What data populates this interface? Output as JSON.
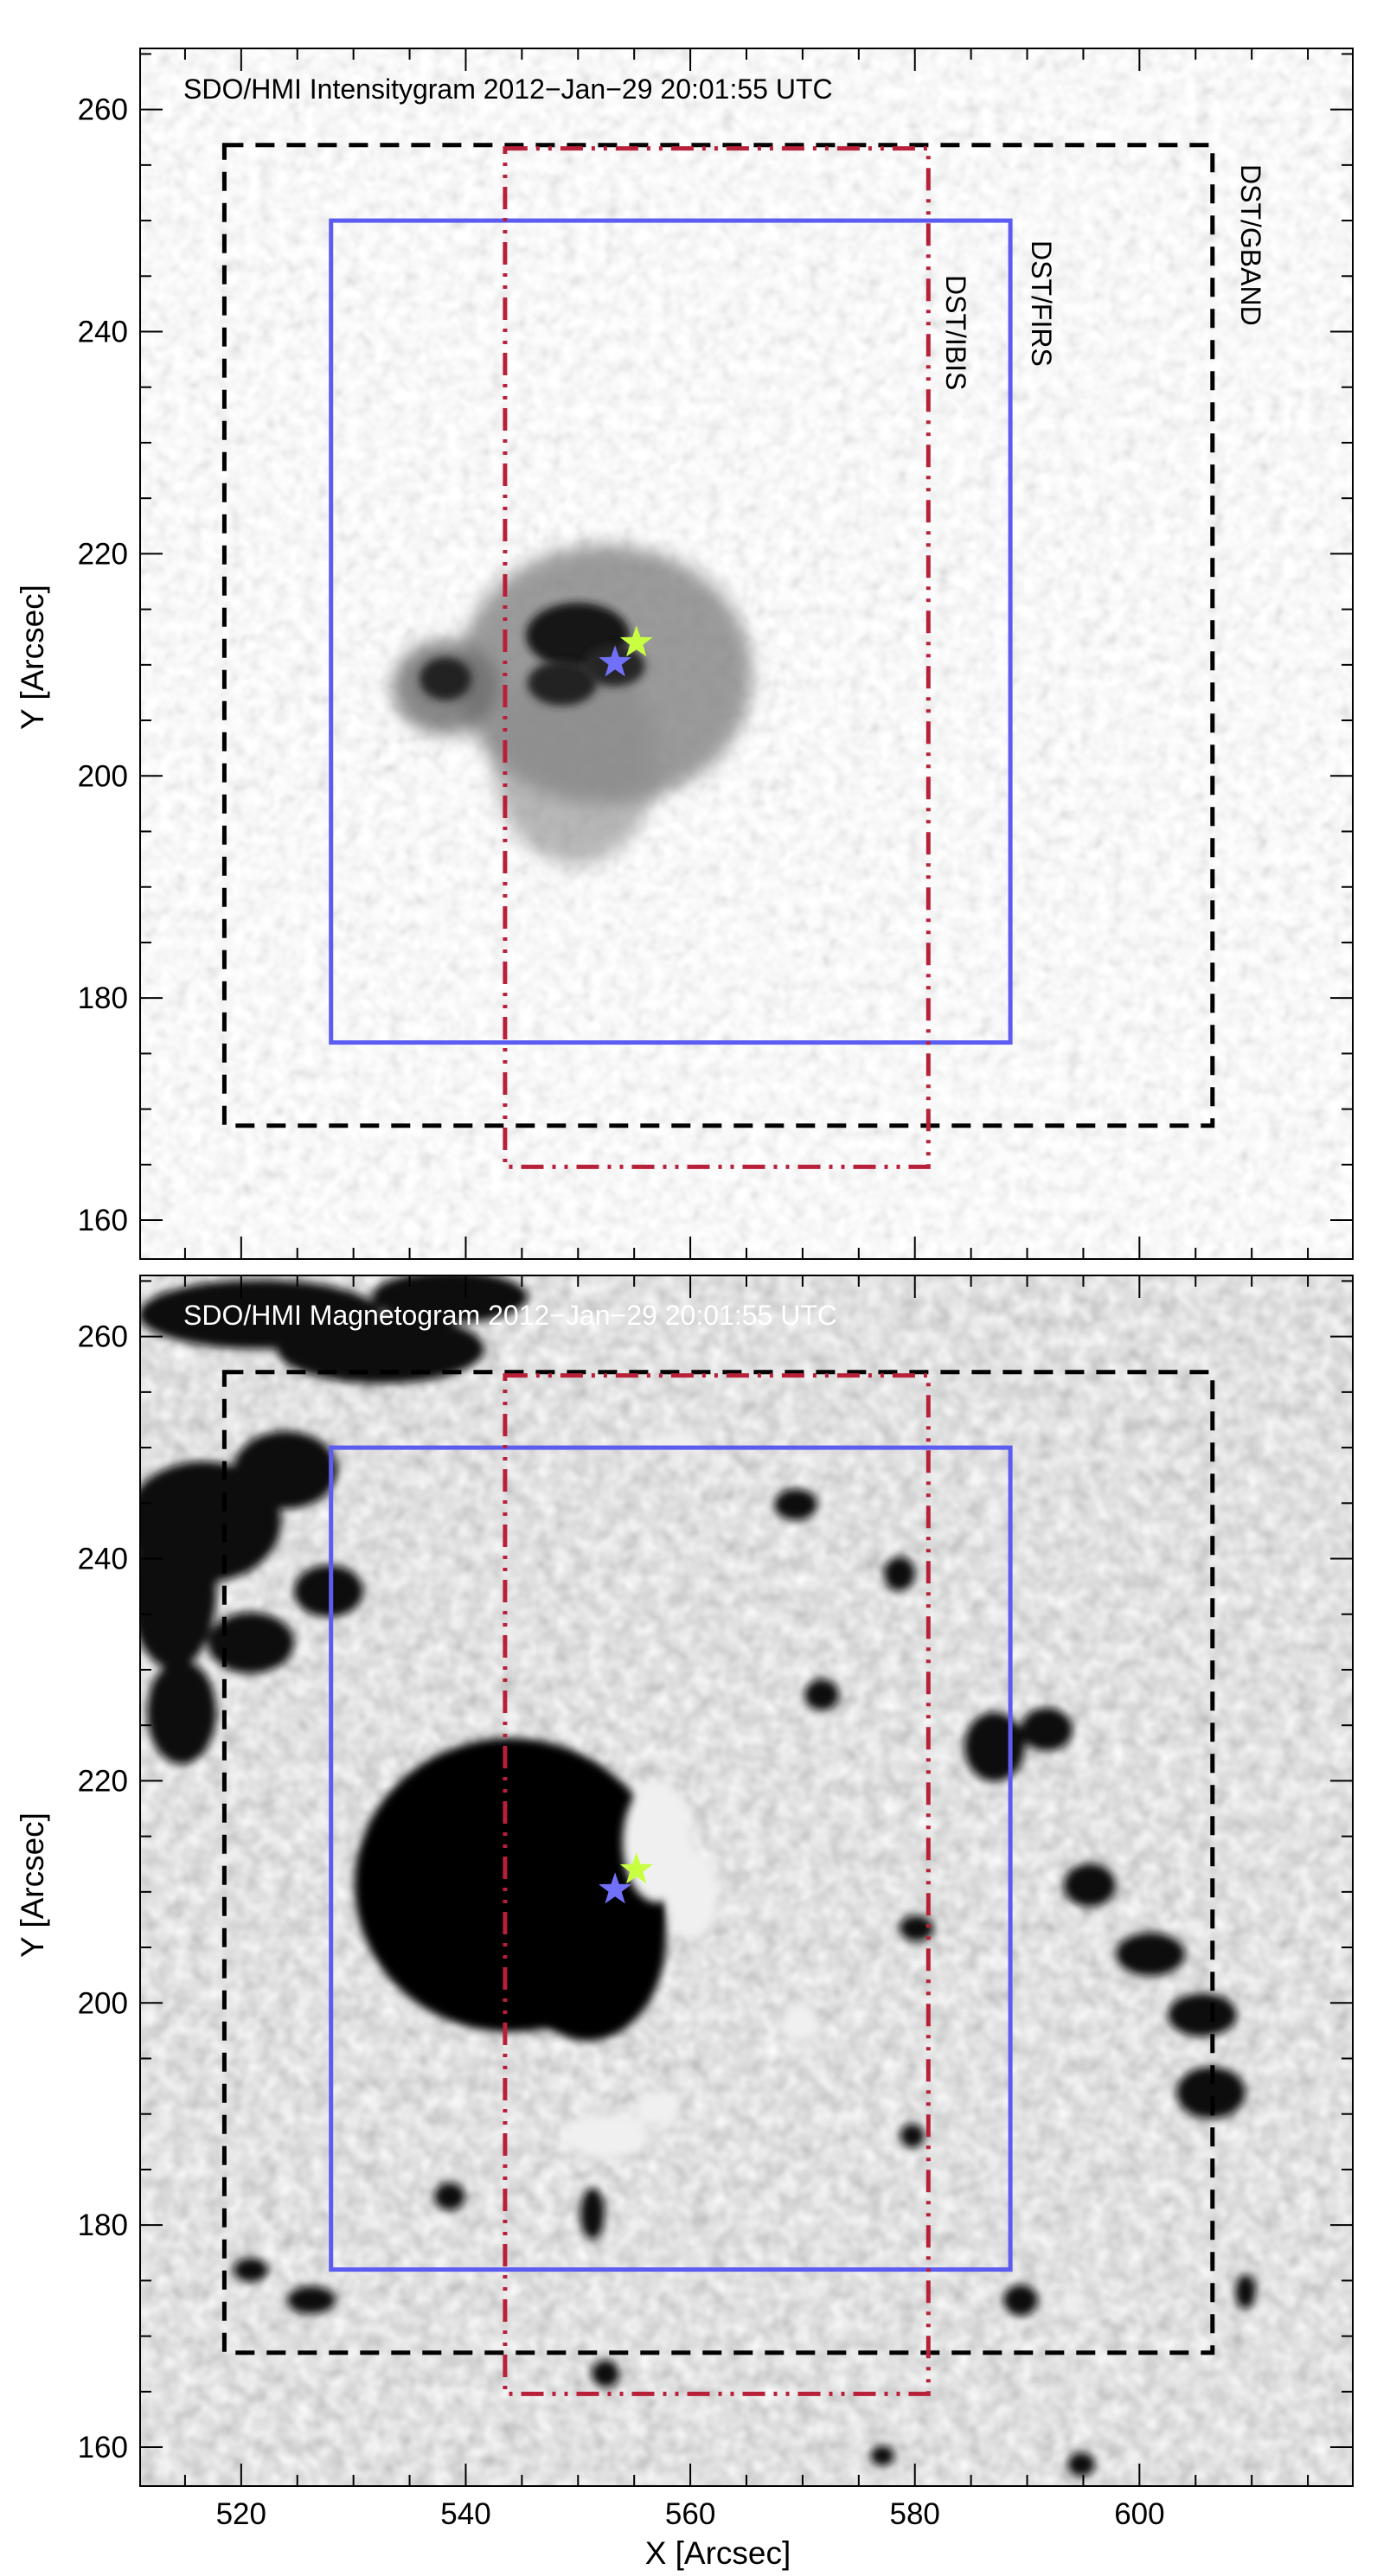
{
  "chart_data": [
    {
      "type": "image",
      "title": "SDO/HMI Intensitygram 2012−Jan−29 20:01:55 UTC",
      "xlabel": "",
      "ylabel": "Y [Arcsec]",
      "xlim": [
        511,
        619
      ],
      "ylim": [
        156.5,
        265.5
      ],
      "x_ticks": [
        "520",
        "540",
        "560",
        "580",
        "600"
      ],
      "y_ticks": [
        "160",
        "180",
        "200",
        "220",
        "240",
        "260"
      ],
      "background": "intensity",
      "boxes": [
        {
          "label": "DST/GBAND",
          "style": "dashed",
          "color": "#000000",
          "x": [
            518.5,
            606.5
          ],
          "y": [
            168.5,
            256.8
          ]
        },
        {
          "label": "DST/FIRS",
          "style": "solid",
          "color": "#5c5cf0",
          "x": [
            528,
            588.5
          ],
          "y": [
            176,
            250
          ]
        },
        {
          "label": "DST/IBIS",
          "style": "dash-dot-dot",
          "color": "#b8203a",
          "x": [
            543.5,
            581.2
          ],
          "y": [
            164.8,
            256.5
          ]
        }
      ],
      "markers": [
        {
          "shape": "star",
          "color": "#7070f8",
          "x": 553.3,
          "y": 210.2
        },
        {
          "shape": "star",
          "color": "#c8ff40",
          "x": 555.2,
          "y": 212
        }
      ]
    },
    {
      "type": "image",
      "title": "SDO/HMI Magnetogram 2012−Jan−29 20:01:55 UTC",
      "xlabel": "X [Arcsec]",
      "ylabel": "Y [Arcsec]",
      "xlim": [
        511,
        619
      ],
      "ylim": [
        156.5,
        265.5
      ],
      "x_ticks": [
        "520",
        "540",
        "560",
        "580",
        "600"
      ],
      "y_ticks": [
        "160",
        "180",
        "200",
        "220",
        "240",
        "260"
      ],
      "background": "magnetogram",
      "boxes": [
        {
          "label": "",
          "style": "dashed",
          "color": "#000000",
          "x": [
            518.5,
            606.5
          ],
          "y": [
            168.5,
            256.8
          ]
        },
        {
          "label": "",
          "style": "solid",
          "color": "#5c5cf0",
          "x": [
            528,
            588.5
          ],
          "y": [
            176,
            250
          ]
        },
        {
          "label": "",
          "style": "dash-dot-dot",
          "color": "#b8203a",
          "x": [
            543.5,
            581.2
          ],
          "y": [
            164.8,
            256.5
          ]
        }
      ],
      "markers": [
        {
          "shape": "star",
          "color": "#7070f8",
          "x": 553.3,
          "y": 210.2
        },
        {
          "shape": "star",
          "color": "#c8ff40",
          "x": 555.2,
          "y": 212
        }
      ]
    }
  ]
}
